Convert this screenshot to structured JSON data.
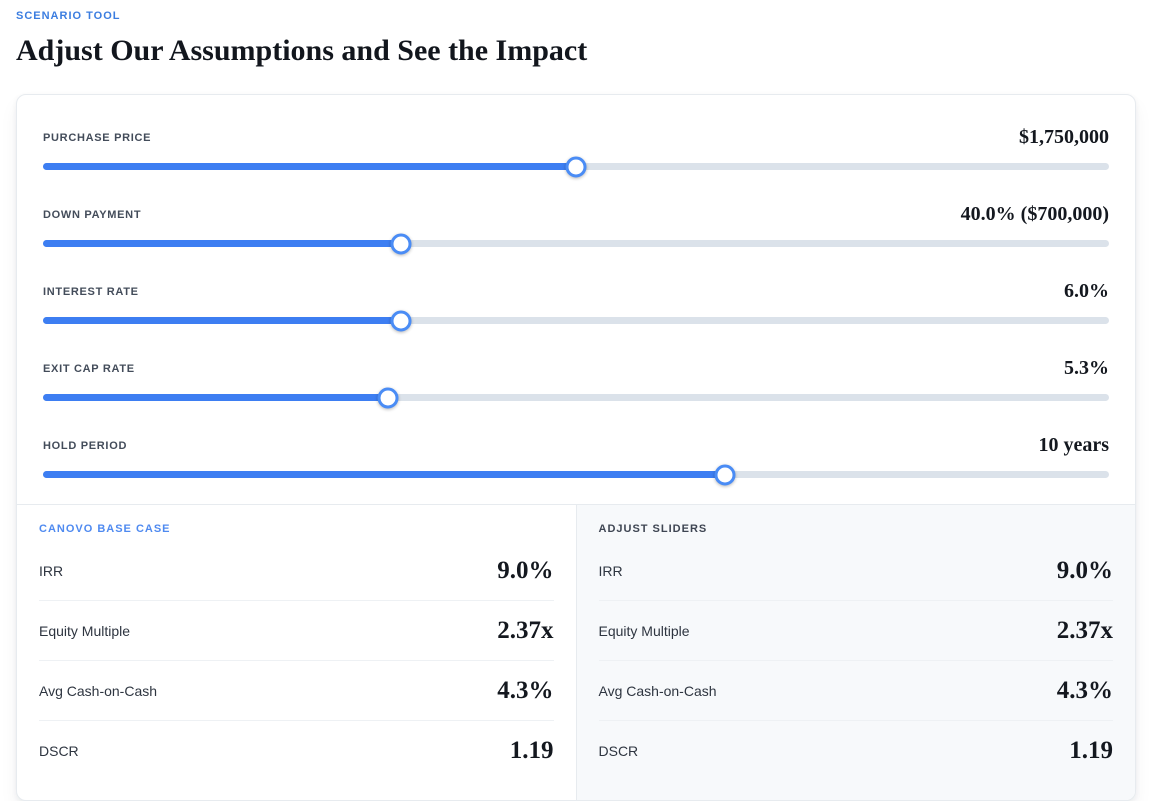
{
  "header": {
    "eyebrow": "SCENARIO TOOL",
    "title": "Adjust Our Assumptions and See the Impact"
  },
  "sliders": [
    {
      "label": "PURCHASE PRICE",
      "value": "$1,750,000",
      "percent": 50
    },
    {
      "label": "DOWN PAYMENT",
      "value": "40.0% ($700,000)",
      "percent": 33.6
    },
    {
      "label": "INTEREST RATE",
      "value": "6.0%",
      "percent": 33.6
    },
    {
      "label": "EXIT CAP RATE",
      "value": "5.3%",
      "percent": 32.4
    },
    {
      "label": "HOLD PERIOD",
      "value": "10 years",
      "percent": 64
    }
  ],
  "results": {
    "base_case": {
      "title": "CANOVO BASE CASE",
      "rows": [
        {
          "label": "IRR",
          "value": "9.0%"
        },
        {
          "label": "Equity Multiple",
          "value": "2.37x"
        },
        {
          "label": "Avg Cash-on-Cash",
          "value": "4.3%"
        },
        {
          "label": "DSCR",
          "value": "1.19"
        }
      ]
    },
    "adjusted": {
      "title": "ADJUST SLIDERS",
      "rows": [
        {
          "label": "IRR",
          "value": "9.0%"
        },
        {
          "label": "Equity Multiple",
          "value": "2.37x"
        },
        {
          "label": "Avg Cash-on-Cash",
          "value": "4.3%"
        },
        {
          "label": "DSCR",
          "value": "1.19"
        }
      ]
    }
  },
  "colors": {
    "accent_blue": "#3d7ef2",
    "eyebrow_blue": "#3b7de0",
    "track_gray": "#dbe2ea",
    "panel_gray": "#f7f9fb",
    "text_dark": "#14181f"
  }
}
